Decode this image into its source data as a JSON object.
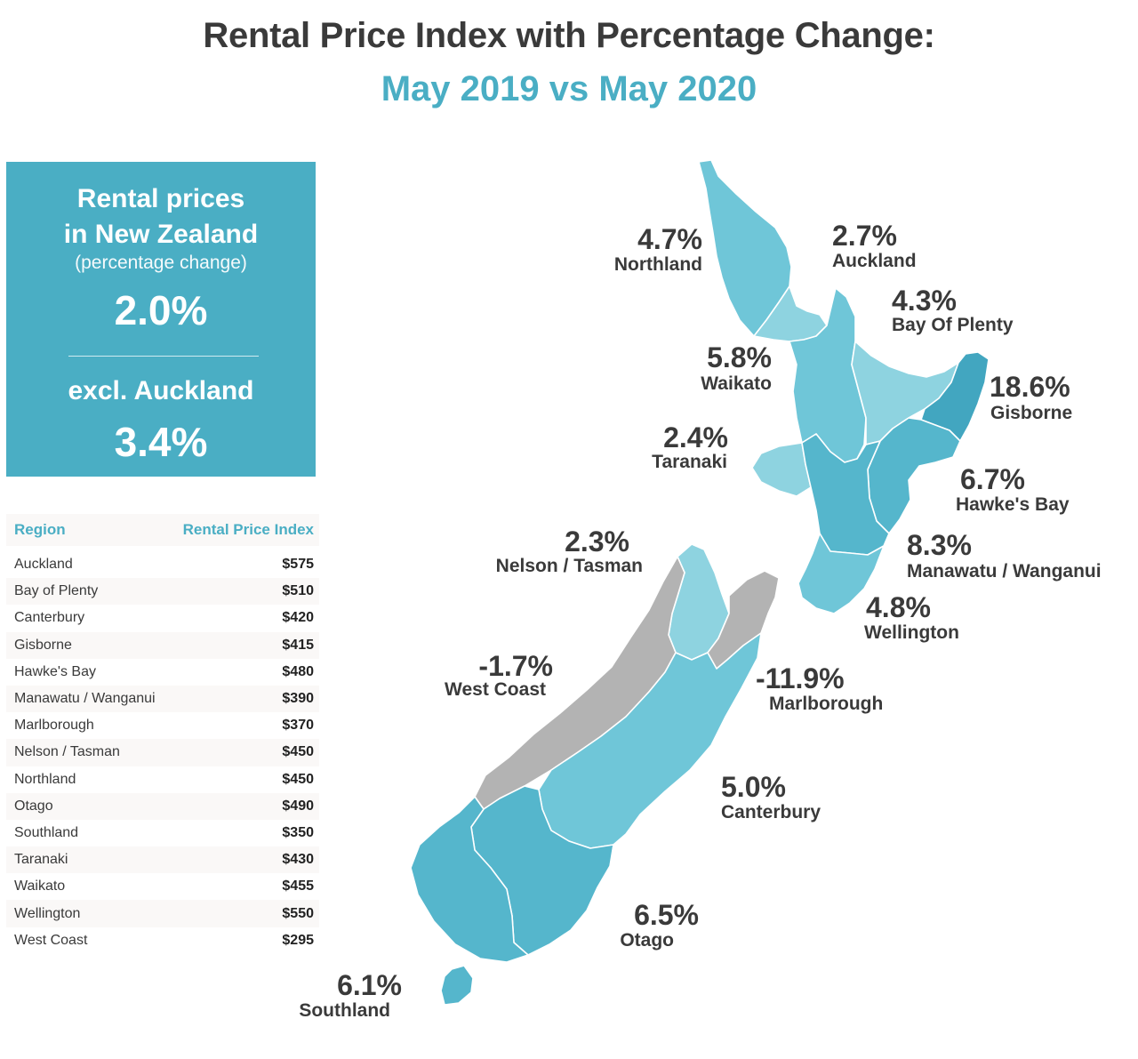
{
  "title": "Rental Price Index with Percentage Change:",
  "subtitle": "May 2019 vs May 2020",
  "summary": {
    "heading_line1": "Rental prices",
    "heading_line2": "in New Zealand",
    "note": "(percentage change)",
    "national_change": "2.0%",
    "excl_label": "excl. Auckland",
    "excl_change": "3.4%"
  },
  "table": {
    "col_region": "Region",
    "col_index": "Rental Price Index",
    "rows": [
      {
        "region": "Auckland",
        "value": "$575"
      },
      {
        "region": "Bay of Plenty",
        "value": "$510"
      },
      {
        "region": "Canterbury",
        "value": "$420"
      },
      {
        "region": "Gisborne",
        "value": "$415"
      },
      {
        "region": "Hawke's Bay",
        "value": "$480"
      },
      {
        "region": "Manawatu / Wanganui",
        "value": "$390"
      },
      {
        "region": "Marlborough",
        "value": "$370"
      },
      {
        "region": "Nelson / Tasman",
        "value": "$450"
      },
      {
        "region": "Northland",
        "value": "$450"
      },
      {
        "region": "Otago",
        "value": "$490"
      },
      {
        "region": "Southland",
        "value": "$350"
      },
      {
        "region": "Taranaki",
        "value": "$430"
      },
      {
        "region": "Waikato",
        "value": "$455"
      },
      {
        "region": "Wellington",
        "value": "$550"
      },
      {
        "region": "West Coast",
        "value": "$295"
      }
    ]
  },
  "map": {
    "colors": {
      "negative": "#b3b3b3",
      "light": "#8ed3e0",
      "mid": "#6fc6d8",
      "dark": "#55b6cc",
      "darkest": "#42a6c0",
      "border": "#ffffff"
    },
    "labels": {
      "northland": {
        "pct": "4.7%",
        "name": "Northland"
      },
      "auckland": {
        "pct": "2.7%",
        "name": "Auckland"
      },
      "bay_of_plenty": {
        "pct": "4.3%",
        "name": "Bay Of Plenty"
      },
      "waikato": {
        "pct": "5.8%",
        "name": "Waikato"
      },
      "gisborne": {
        "pct": "18.6%",
        "name": "Gisborne"
      },
      "taranaki": {
        "pct": "2.4%",
        "name": "Taranaki"
      },
      "hawkes_bay": {
        "pct": "6.7%",
        "name": "Hawke's Bay"
      },
      "nelson_tasman": {
        "pct": "2.3%",
        "name": "Nelson / Tasman"
      },
      "manawatu_wanganui": {
        "pct": "8.3%",
        "name": "Manawatu / Wanganui"
      },
      "wellington": {
        "pct": "4.8%",
        "name": "Wellington"
      },
      "west_coast": {
        "pct": "-1.7%",
        "name": "West Coast"
      },
      "marlborough": {
        "pct": "-11.9%",
        "name": "Marlborough"
      },
      "canterbury": {
        "pct": "5.0%",
        "name": "Canterbury"
      },
      "otago": {
        "pct": "6.5%",
        "name": "Otago"
      },
      "southland": {
        "pct": "6.1%",
        "name": "Southland"
      }
    }
  }
}
